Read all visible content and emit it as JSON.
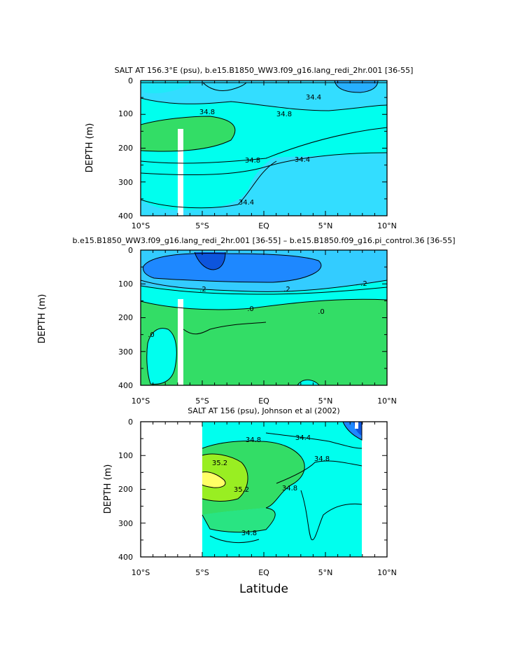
{
  "chart_data": [
    {
      "type": "contour",
      "title": "SALT AT 156.3°E (psu), b.e15.B1850_WW3.f09_g16.lang_redi_2hr.001 [36-55]",
      "ylabel": "DEPTH (m)",
      "xlabel": "",
      "x_ticks": [
        "10°S",
        "5°S",
        "EQ",
        "5°N",
        "10°N"
      ],
      "y_ticks": [
        "0",
        "100",
        "200",
        "300",
        "400"
      ],
      "xlim": [
        -10,
        10
      ],
      "ylim": [
        400,
        0
      ],
      "contour_labels": [
        {
          "text": "34.4",
          "x": 5.3,
          "y": 45
        },
        {
          "text": "34.8",
          "x": -4.2,
          "y": 100
        },
        {
          "text": "34.8",
          "x": 1.7,
          "y": 100
        },
        {
          "text": "34.8",
          "x": -0.9,
          "y": 235
        },
        {
          "text": "34.4",
          "x": 3.5,
          "y": 240
        },
        {
          "text": "34.4",
          "x": -1.5,
          "y": 355
        }
      ],
      "fill_colors": [
        "#33ddff",
        "#00ffee",
        "#33dd66"
      ]
    },
    {
      "type": "contour",
      "title": "b.e15.B1850_WW3.f09_g16.lang_redi_2hr.001 [36-55] – b.e15.B1850.f09_g16.pi_control.36 [36-55]",
      "ylabel": "DEPTH (m)",
      "xlabel": "",
      "x_ticks": [
        "10°S",
        "5°S",
        "EQ",
        "5°N",
        "10°N"
      ],
      "y_ticks": [
        "0",
        "100",
        "200",
        "300",
        "400"
      ],
      "xlim": [
        -10,
        10
      ],
      "ylim": [
        400,
        0
      ],
      "contour_labels": [
        {
          "text": ".2",
          "x": -3.3,
          "y": 118
        },
        {
          "text": ".2",
          "x": 2.0,
          "y": 118
        },
        {
          "text": ".2",
          "x": 8.9,
          "y": 100
        },
        {
          "text": ".0",
          "x": -9.3,
          "y": 250
        },
        {
          "text": ".0",
          "x": -1.0,
          "y": 180
        },
        {
          "text": ".0",
          "x": 5.9,
          "y": 185
        }
      ],
      "fill_colors": [
        "#1e88ff",
        "#33ccff",
        "#00ffee",
        "#33dd66"
      ]
    },
    {
      "type": "contour",
      "title": "SALT AT 156 (psu), Johnson et al (2002)",
      "ylabel": "DEPTH (m)",
      "xlabel": "Latitude",
      "x_ticks": [
        "10°S",
        "5°S",
        "EQ",
        "5°N",
        "10°N"
      ],
      "y_ticks": [
        "0",
        "100",
        "200",
        "300",
        "400"
      ],
      "xlim": [
        -10,
        10
      ],
      "ylim": [
        400,
        0
      ],
      "data_range_x": [
        -5,
        8
      ],
      "contour_labels": [
        {
          "text": "34.8",
          "x": -2.2,
          "y": 55
        },
        {
          "text": "34.4",
          "x": 3.2,
          "y": 45
        },
        {
          "text": "35.2",
          "x": -3.8,
          "y": 125
        },
        {
          "text": "34.8",
          "x": 4.8,
          "y": 115
        },
        {
          "text": "35.2",
          "x": -1.4,
          "y": 200
        },
        {
          "text": "34.8",
          "x": 2.1,
          "y": 200
        },
        {
          "text": "34.8",
          "x": -2.5,
          "y": 325
        }
      ],
      "fill_colors": [
        "#00ffee",
        "#33dd66",
        "#99ee22",
        "#ffff66",
        "#1e88ff"
      ]
    }
  ]
}
